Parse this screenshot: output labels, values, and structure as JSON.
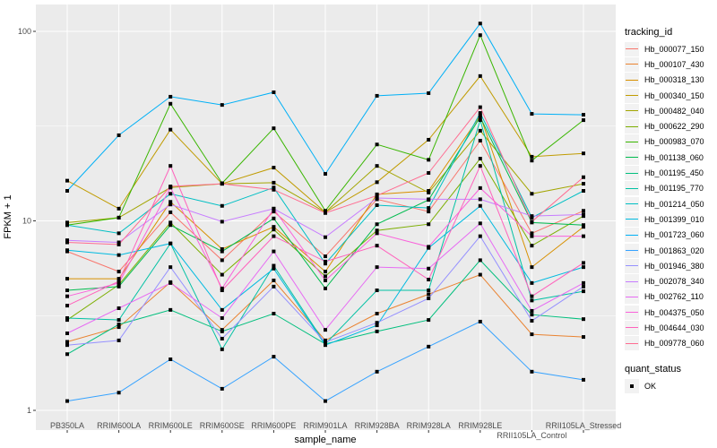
{
  "chart_data": {
    "type": "line",
    "xlabel": "sample_name",
    "ylabel": "FPKM + 1",
    "y_scale": "log10",
    "ylim": [
      0.9,
      130
    ],
    "yticks": [
      "1",
      "10",
      "100"
    ],
    "grid": true,
    "legend_placement": "right",
    "categories": [
      "PB350LA",
      "RRIM600LA",
      "RRIM600LE",
      "RRIM600SE",
      "RRIM600PE",
      "RRIM901LA",
      "RRIM928BA",
      "RRIM928LA",
      "RRIM928LE",
      "RRII105LA_Control",
      "RRII105LA_Stressed"
    ],
    "legend_title": "tracking_id",
    "shape_legend": {
      "title": "quant_status",
      "entries": [
        "OK"
      ]
    },
    "series": [
      {
        "name": "Hb_000077_150",
        "color": "#F8766D",
        "values": [
          6.9,
          5.4,
          11.1,
          6.2,
          11.2,
          6.5,
          13.0,
          11.2,
          26.5,
          8.6,
          11.3
        ]
      },
      {
        "name": "Hb_000107_430",
        "color": "#EA8331",
        "values": [
          2.3,
          2.75,
          4.75,
          2.66,
          4.85,
          2.34,
          3.24,
          4.1,
          5.2,
          2.52,
          2.44
        ]
      },
      {
        "name": "Hb_000318_130",
        "color": "#D89000",
        "values": [
          4.95,
          4.95,
          12.6,
          7.1,
          9.3,
          5.4,
          13.8,
          14.4,
          35.9,
          5.7,
          9.3
        ]
      },
      {
        "name": "Hb_000340_150",
        "color": "#C09B00",
        "values": [
          16.3,
          11.6,
          30.3,
          15.7,
          19.1,
          11.1,
          16.0,
          26.8,
          58.1,
          21.8,
          22.7
        ]
      },
      {
        "name": "Hb_000482_040",
        "color": "#A3A500",
        "values": [
          9.8,
          10.4,
          15.0,
          15.7,
          15.9,
          11.1,
          19.5,
          14.1,
          29.9,
          13.9,
          15.7
        ]
      },
      {
        "name": "Hb_000622_290",
        "color": "#7CAE00",
        "values": [
          3.0,
          4.6,
          9.8,
          5.2,
          9.0,
          5.1,
          8.9,
          9.6,
          21.3,
          7.4,
          10.6
        ]
      },
      {
        "name": "Hb_000983_070",
        "color": "#39B600",
        "values": [
          9.5,
          10.4,
          41.5,
          15.8,
          30.8,
          11.3,
          25.3,
          21.0,
          95.5,
          20.8,
          34.0
        ]
      },
      {
        "name": "Hb_001138_060",
        "color": "#00BB4E",
        "values": [
          4.3,
          4.5,
          9.5,
          6.9,
          10.3,
          4.4,
          9.6,
          12.9,
          35.3,
          9.8,
          9.5
        ]
      },
      {
        "name": "Hb_001195_450",
        "color": "#00BF7D",
        "values": [
          1.98,
          2.84,
          3.39,
          2.61,
          3.24,
          2.24,
          2.61,
          3.0,
          6.2,
          3.2,
          3.03
        ]
      },
      {
        "name": "Hb_001195_770",
        "color": "#00C1A3",
        "values": [
          3.07,
          3.0,
          7.6,
          2.1,
          5.8,
          2.24,
          4.3,
          4.3,
          34.0,
          3.8,
          4.25
        ]
      },
      {
        "name": "Hb_001214_050",
        "color": "#00BFC4",
        "values": [
          9.5,
          8.6,
          13.9,
          12.0,
          15.0,
          5.95,
          12.1,
          11.7,
          37.1,
          10.4,
          14.4
        ]
      },
      {
        "name": "Hb_001399_010",
        "color": "#00BAE0",
        "values": [
          7.0,
          6.6,
          7.6,
          3.39,
          5.6,
          2.21,
          2.81,
          7.2,
          12.0,
          4.7,
          5.7
        ]
      },
      {
        "name": "Hb_001723_060",
        "color": "#00B0F6",
        "values": [
          14.4,
          28.3,
          45.2,
          40.9,
          47.7,
          17.7,
          45.7,
          47.2,
          110,
          36.7,
          36.3
        ]
      },
      {
        "name": "Hb_001863_020",
        "color": "#35A2FF",
        "values": [
          1.12,
          1.24,
          1.86,
          1.3,
          1.92,
          1.12,
          1.6,
          2.17,
          2.94,
          1.6,
          1.45
        ]
      },
      {
        "name": "Hb_001946_380",
        "color": "#9590FF",
        "values": [
          2.21,
          2.34,
          5.7,
          2.39,
          4.5,
          2.29,
          2.9,
          3.9,
          8.3,
          2.97,
          4.5
        ]
      },
      {
        "name": "Hb_002078_340",
        "color": "#C77CFF",
        "values": [
          7.9,
          7.7,
          12.2,
          9.9,
          11.6,
          8.2,
          13.2,
          13.0,
          13.0,
          10.6,
          10.8
        ]
      },
      {
        "name": "Hb_002762_110",
        "color": "#E76BF3",
        "values": [
          2.55,
          3.46,
          4.7,
          3.07,
          6.9,
          2.66,
          5.7,
          5.6,
          9.7,
          3.35,
          4.7
        ]
      },
      {
        "name": "Hb_004375_050",
        "color": "#FA62DB",
        "values": [
          4.0,
          4.7,
          15.0,
          4.4,
          11.6,
          4.85,
          8.6,
          7.3,
          14.9,
          8.3,
          8.3
        ]
      },
      {
        "name": "Hb_004644_030",
        "color": "#FF62BC",
        "values": [
          3.57,
          4.8,
          19.5,
          4.3,
          8.3,
          6.1,
          7.4,
          4.9,
          19.5,
          4.0,
          6.0
        ]
      },
      {
        "name": "Hb_009778_060",
        "color": "#FF6C91",
        "values": [
          7.7,
          7.5,
          15.2,
          15.7,
          14.6,
          11.0,
          13.6,
          17.9,
          39.8,
          9.9,
          17.0
        ]
      }
    ]
  }
}
